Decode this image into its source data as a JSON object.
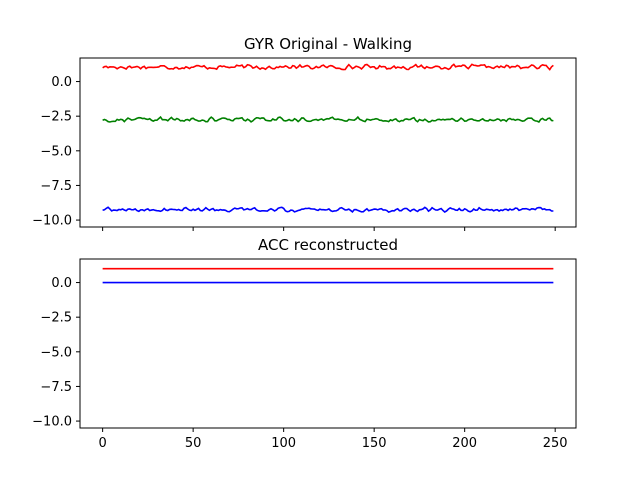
{
  "chart_data": [
    {
      "type": "line",
      "title": "GYR Original - Walking",
      "xlim": [
        -12.5,
        261.5
      ],
      "ylim": [
        -10.5,
        1.7
      ],
      "xticks": [
        0,
        50,
        100,
        150,
        200,
        250
      ],
      "show_xtick_labels": false,
      "yticks": [
        0.0,
        -2.5,
        -5.0,
        -7.5,
        -10.0
      ],
      "ytick_labels": [
        "0.0",
        "−2.5",
        "−5.0",
        "−7.5",
        "−10.0"
      ],
      "grid": false,
      "series": [
        {
          "color": "#ff0000",
          "x_start": 0,
          "x_end": 249,
          "base": 1.05,
          "amplitude": 0.2
        },
        {
          "color": "#008000",
          "x_start": 0,
          "x_end": 249,
          "base": -2.75,
          "amplitude": 0.2
        },
        {
          "color": "#0000ff",
          "x_start": 0,
          "x_end": 249,
          "base": -9.25,
          "amplitude": 0.2
        }
      ]
    },
    {
      "type": "line",
      "title": "ACC reconstructed",
      "xlim": [
        -12.5,
        261.5
      ],
      "ylim": [
        -10.5,
        1.7
      ],
      "xticks": [
        0,
        50,
        100,
        150,
        200,
        250
      ],
      "xtick_labels": [
        "0",
        "50",
        "100",
        "150",
        "200",
        "250"
      ],
      "yticks": [
        0.0,
        -2.5,
        -5.0,
        -7.5,
        -10.0
      ],
      "ytick_labels": [
        "0.0",
        "−2.5",
        "−5.0",
        "−7.5",
        "−10.0"
      ],
      "grid": false,
      "series": [
        {
          "color": "#ff0000",
          "x": [
            0,
            249
          ],
          "y": [
            1.0,
            1.0
          ]
        },
        {
          "color": "#0000ff",
          "x": [
            0,
            249
          ],
          "y": [
            0.0,
            0.0
          ]
        }
      ]
    }
  ]
}
